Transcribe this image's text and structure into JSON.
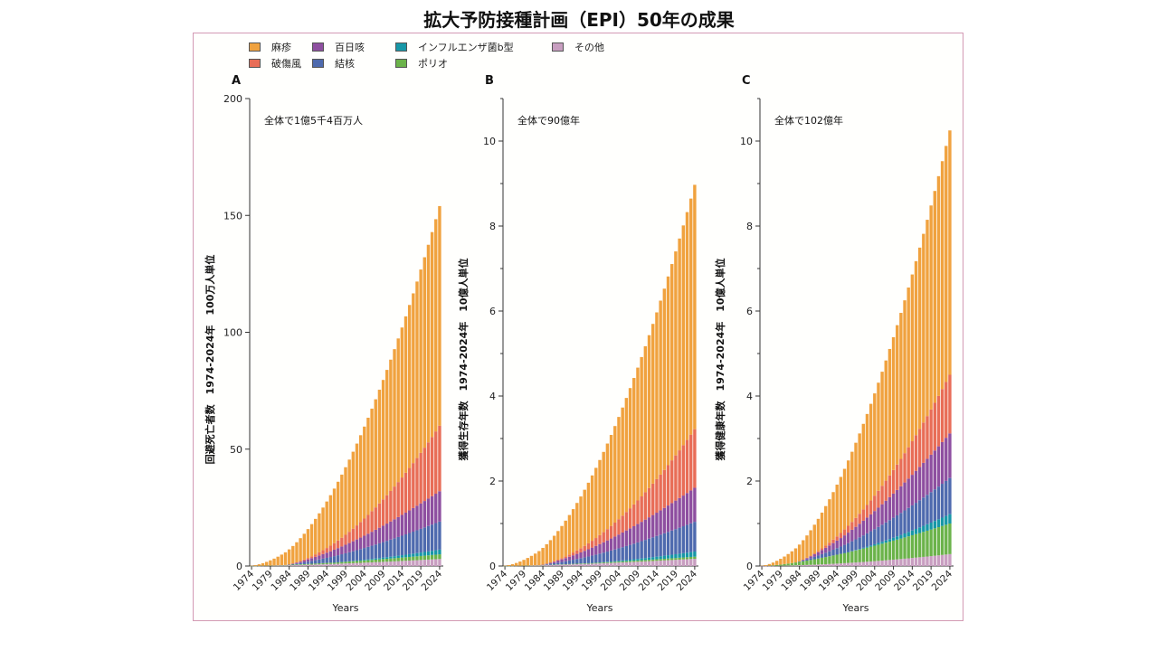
{
  "title": "拡大予防接種計画（EPI）50年の成果",
  "legend_items": [
    {
      "name": "麻疹",
      "color": "#F0A23F"
    },
    {
      "name": "百日咳",
      "color": "#8E4FA0"
    },
    {
      "name": "インフルエンザ菌b型",
      "color": "#1797A7"
    },
    {
      "name": "その他",
      "color": "#C89EC0"
    },
    {
      "name": "破傷風",
      "color": "#E86D57"
    },
    {
      "name": "結核",
      "color": "#4E6AAE"
    },
    {
      "name": "ポリオ",
      "color": "#6BB34A"
    }
  ],
  "chart_data": [
    {
      "panel": "A",
      "type": "bar",
      "stacked": true,
      "total_label": "全体で1億5千4百万人",
      "ylabel": "回避死亡者数　1974-2024年　100万人単位",
      "xlabel": "Years",
      "x_start": 1974,
      "x_end": 2024,
      "xticks": [
        "1974",
        "1979",
        "1984",
        "1989",
        "1994",
        "1999",
        "2004",
        "2009",
        "2014",
        "2019",
        "2024"
      ],
      "ylim": [
        0,
        200
      ],
      "yticks": [
        "0",
        "50",
        "100",
        "150",
        "200"
      ],
      "series_end": {
        "その他": 3.0,
        "ポリオ": 2.0,
        "インフルエンザ菌b型": 2.0,
        "結核": 12.0,
        "百日咳": 13.0,
        "破傷風": 28.0,
        "麻疹": 94.0
      },
      "series_start": {
        "その他": 1974,
        "ポリオ": 1974,
        "インフルエンザ菌b型": 1996,
        "結核": 1984,
        "百日咳": 1984,
        "破傷風": 1984,
        "麻疹": 1974
      },
      "series_exp": {
        "その他": 1.5,
        "ポリオ": 1.5,
        "インフルエンザ菌b型": 1.6,
        "結核": 1.3,
        "百日咳": 1.35,
        "破傷風": 2.0,
        "麻疹": 1.75
      }
    },
    {
      "panel": "B",
      "type": "bar",
      "stacked": true,
      "total_label": "全体で90億年",
      "ylabel": "獲得生存年数　1974-2024年　10億人単位",
      "xlabel": "Years",
      "x_start": 1974,
      "x_end": 2024,
      "xticks": [
        "1974",
        "1979",
        "1984",
        "1989",
        "1994",
        "1999",
        "2004",
        "2009",
        "2014",
        "2019",
        "2024"
      ],
      "ylim": [
        0,
        11
      ],
      "yticks": [
        "0",
        "2",
        "4",
        "6",
        "8",
        "10"
      ],
      "series_end": {
        "その他": 0.17,
        "ポリオ": 0.05,
        "インフルエンザ菌b型": 0.12,
        "結核": 0.7,
        "百日咳": 0.8,
        "破傷風": 1.38,
        "麻疹": 5.75
      },
      "series_start": {
        "その他": 1974,
        "ポリオ": 1974,
        "インフルエンザ菌b型": 1996,
        "結核": 1984,
        "百日咳": 1984,
        "破傷風": 1984,
        "麻疹": 1974
      },
      "series_exp": {
        "その他": 1.5,
        "ポリオ": 1.5,
        "インフルエンザ菌b型": 1.6,
        "結核": 1.3,
        "百日咳": 1.35,
        "破傷風": 2.0,
        "麻疹": 1.75
      }
    },
    {
      "panel": "C",
      "type": "bar",
      "stacked": true,
      "total_label": "全体で102億年",
      "ylabel": "獲得健康年数　1974-2024年　10億人単位",
      "xlabel": "Years",
      "x_start": 1974,
      "x_end": 2024,
      "xticks": [
        "1974",
        "1979",
        "1984",
        "1989",
        "1994",
        "1999",
        "2004",
        "2009",
        "2014",
        "2019",
        "2024"
      ],
      "ylim": [
        0,
        11
      ],
      "yticks": [
        "0",
        "2",
        "4",
        "6",
        "8",
        "10"
      ],
      "series_end": {
        "その他": 0.28,
        "ポリオ": 0.72,
        "インフルエンザ菌b型": 0.22,
        "結核": 0.85,
        "百日咳": 1.05,
        "破傷風": 1.38,
        "麻疹": 5.75
      },
      "series_start": {
        "その他": 1974,
        "ポリオ": 1976,
        "インフルエンザ菌b型": 1996,
        "結核": 1984,
        "百日咳": 1984,
        "破傷風": 1984,
        "麻疹": 1974
      },
      "series_exp": {
        "その他": 1.8,
        "ポリオ": 1.3,
        "インフルエンザ菌b型": 1.6,
        "結核": 1.3,
        "百日咳": 1.35,
        "破傷風": 2.0,
        "麻疹": 1.75
      }
    }
  ]
}
